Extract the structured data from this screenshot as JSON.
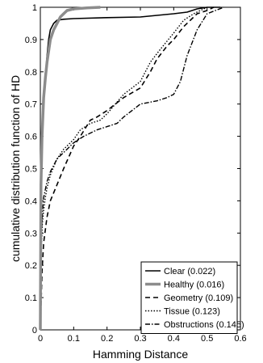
{
  "chart_data": {
    "type": "line",
    "title": "",
    "xlabel": "Hamming Distance",
    "ylabel": "cumulative distribution function of HD",
    "xlim": [
      0,
      0.6
    ],
    "ylim": [
      0,
      1
    ],
    "xticks": [
      0,
      0.1,
      0.2,
      0.3,
      0.4,
      0.5,
      0.6
    ],
    "yticks": [
      0,
      0.1,
      0.2,
      0.3,
      0.4,
      0.5,
      0.6,
      0.7,
      0.8,
      0.9,
      1
    ],
    "xtick_labels": [
      "0",
      "0.1",
      "0.2",
      "0.3",
      "0.4",
      "0.5",
      "0.6"
    ],
    "ytick_labels": [
      "0",
      "0.1",
      "0.2",
      "0.3",
      "0.4",
      "0.5",
      "0.6",
      "0.7",
      "0.8",
      "0.9",
      "1"
    ],
    "grid": false,
    "legend_position": "bottom-right",
    "series": [
      {
        "name": "Clear (0.022)",
        "color": "#000000",
        "style": "solid",
        "x": [
          0,
          0.003,
          0.006,
          0.01,
          0.015,
          0.02,
          0.025,
          0.03,
          0.04,
          0.05,
          0.07,
          0.1,
          0.2,
          0.3,
          0.4,
          0.44,
          0.47,
          0.5,
          0.54
        ],
        "y": [
          0,
          0.5,
          0.62,
          0.7,
          0.78,
          0.85,
          0.9,
          0.93,
          0.95,
          0.96,
          0.963,
          0.965,
          0.968,
          0.97,
          0.98,
          0.985,
          0.995,
          1,
          1
        ]
      },
      {
        "name": "Healthy (0.016)",
        "color": "#8c8c8c",
        "style": "solid-thick",
        "x": [
          0,
          0.002,
          0.005,
          0.01,
          0.015,
          0.02,
          0.03,
          0.04,
          0.05,
          0.06,
          0.07,
          0.08,
          0.1,
          0.14,
          0.18
        ],
        "y": [
          0,
          0.45,
          0.6,
          0.72,
          0.78,
          0.83,
          0.9,
          0.93,
          0.95,
          0.97,
          0.98,
          0.99,
          0.995,
          0.998,
          1
        ]
      },
      {
        "name": "Geometry (0.109)",
        "color": "#000000",
        "style": "dashed",
        "x": [
          0,
          0.005,
          0.01,
          0.02,
          0.03,
          0.05,
          0.07,
          0.1,
          0.12,
          0.15,
          0.17,
          0.2,
          0.25,
          0.3,
          0.33,
          0.35,
          0.38,
          0.4,
          0.43,
          0.45,
          0.47,
          0.5,
          0.52
        ],
        "y": [
          0,
          0.18,
          0.27,
          0.35,
          0.4,
          0.45,
          0.5,
          0.57,
          0.6,
          0.65,
          0.66,
          0.68,
          0.72,
          0.75,
          0.8,
          0.84,
          0.88,
          0.9,
          0.94,
          0.96,
          0.98,
          0.99,
          1
        ]
      },
      {
        "name": "Tissue (0.123)",
        "color": "#000000",
        "style": "dotted",
        "x": [
          0,
          0.003,
          0.006,
          0.01,
          0.015,
          0.02,
          0.03,
          0.05,
          0.07,
          0.1,
          0.12,
          0.15,
          0.18,
          0.2,
          0.25,
          0.3,
          0.33,
          0.36,
          0.4,
          0.43,
          0.46,
          0.5
        ],
        "y": [
          0,
          0.25,
          0.33,
          0.37,
          0.41,
          0.44,
          0.48,
          0.53,
          0.56,
          0.59,
          0.62,
          0.64,
          0.65,
          0.67,
          0.73,
          0.77,
          0.83,
          0.87,
          0.92,
          0.96,
          0.98,
          1
        ]
      },
      {
        "name": "Obstructions (0.145)",
        "color": "#000000",
        "style": "dash-dot",
        "x": [
          0,
          0.003,
          0.006,
          0.01,
          0.02,
          0.03,
          0.05,
          0.08,
          0.1,
          0.13,
          0.15,
          0.17,
          0.2,
          0.23,
          0.25,
          0.3,
          0.35,
          0.38,
          0.4,
          0.42,
          0.44,
          0.47,
          0.5,
          0.55
        ],
        "y": [
          0,
          0.27,
          0.36,
          0.41,
          0.46,
          0.49,
          0.53,
          0.56,
          0.58,
          0.6,
          0.61,
          0.62,
          0.63,
          0.64,
          0.66,
          0.7,
          0.71,
          0.72,
          0.73,
          0.77,
          0.85,
          0.93,
          0.98,
          1
        ]
      }
    ]
  }
}
